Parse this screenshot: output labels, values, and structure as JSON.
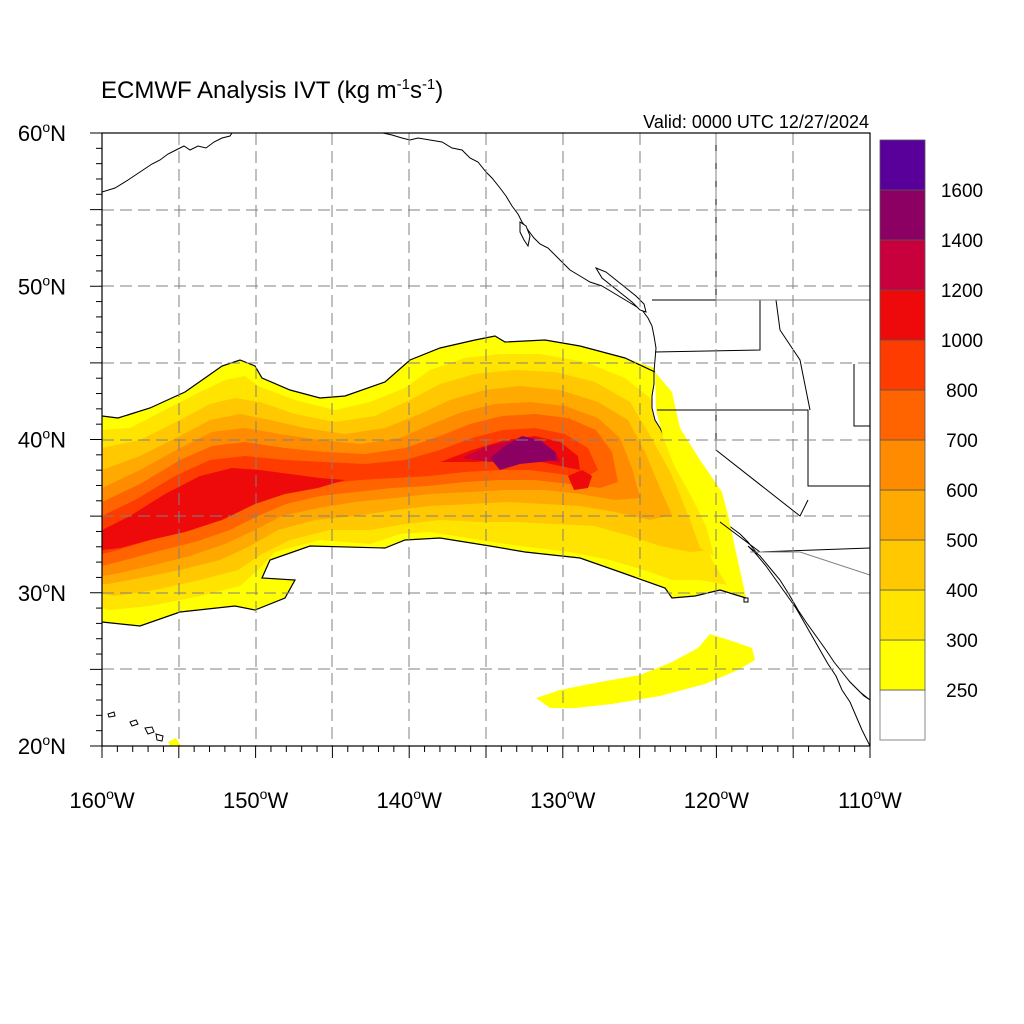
{
  "title": {
    "main": "ECMWF Analysis IVT (kg m",
    "sup1": "-1",
    "mid": "s",
    "sup2": "-1",
    "end": ")"
  },
  "valid": "Valid: 0000 UTC 12/27/2024",
  "lat_labels": [
    {
      "deg": "60",
      "suffix": "N",
      "value": 60
    },
    {
      "deg": "50",
      "suffix": "N",
      "value": 50
    },
    {
      "deg": "40",
      "suffix": "N",
      "value": 40
    },
    {
      "deg": "30",
      "suffix": "N",
      "value": 30
    },
    {
      "deg": "20",
      "suffix": "N",
      "value": 20
    }
  ],
  "lon_labels": [
    {
      "deg": "160",
      "suffix": "W",
      "value": -160
    },
    {
      "deg": "150",
      "suffix": "W",
      "value": -150
    },
    {
      "deg": "140",
      "suffix": "W",
      "value": -140
    },
    {
      "deg": "130",
      "suffix": "W",
      "value": -130
    },
    {
      "deg": "120",
      "suffix": "W",
      "value": -120
    },
    {
      "deg": "110",
      "suffix": "W",
      "value": -110
    }
  ],
  "extent": {
    "lon": [
      -160,
      -110
    ],
    "lat": [
      20,
      60
    ]
  },
  "gridlines_dashed": true,
  "colorbar": {
    "labels": [
      "250",
      "300",
      "400",
      "500",
      "600",
      "700",
      "800",
      "1000",
      "1200",
      "1400",
      "1600"
    ],
    "colors": [
      "#ffff00",
      "#ffe400",
      "#ffc800",
      "#ffaa00",
      "#ff8c00",
      "#ff6400",
      "#ff3c00",
      "#ee0a0a",
      "#c8003c",
      "#8c0064",
      "#5a009a"
    ]
  },
  "map_colors": {
    "land": "#ffffff",
    "coastline": "#000000",
    "border": "#000000",
    "grid": "#808080"
  }
}
